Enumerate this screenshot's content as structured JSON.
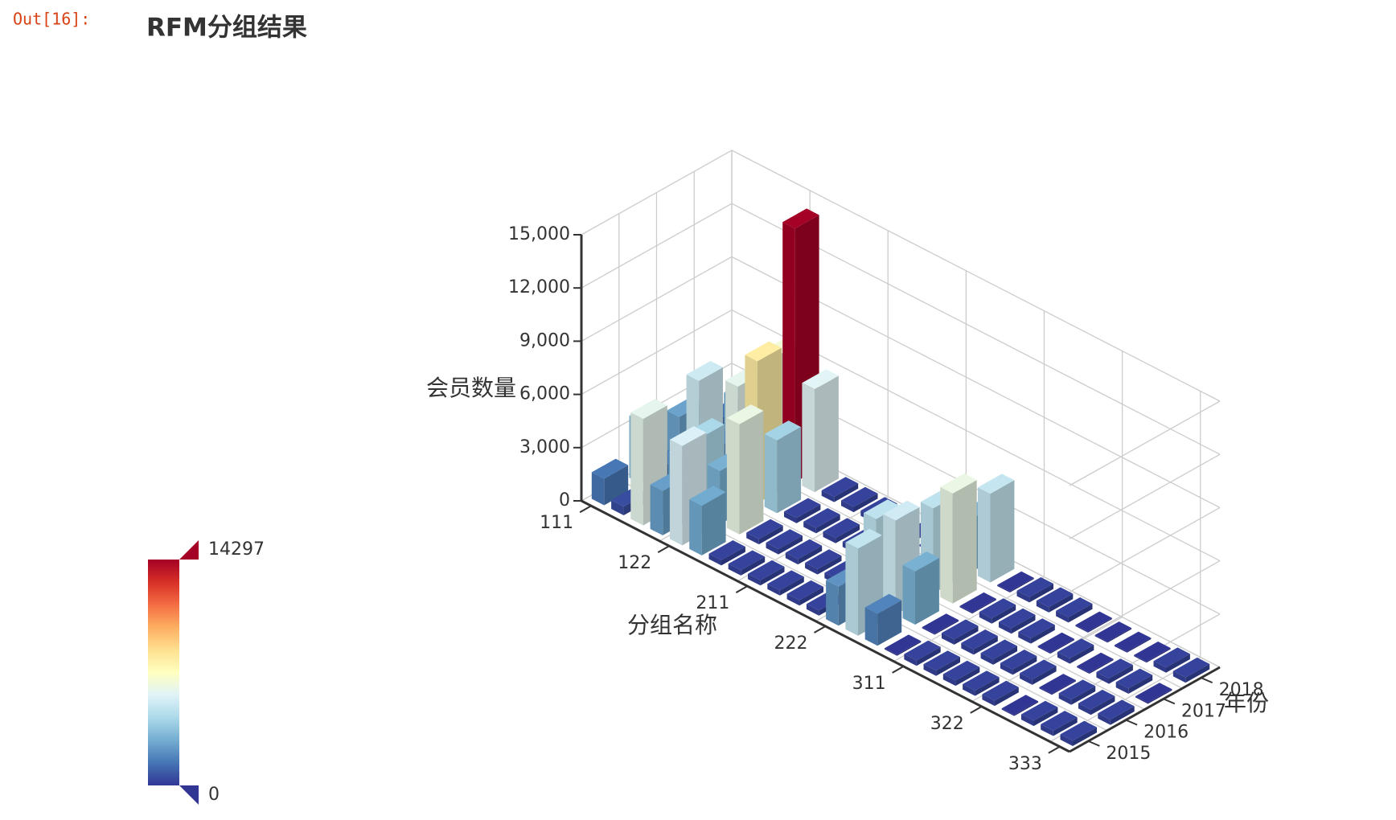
{
  "prompt": "Out[16]:",
  "chart_data": {
    "type": "bar3d",
    "title": "RFM分组结果",
    "x_label": "分组名称",
    "y_label": "年份",
    "z_label": "会员数量",
    "categories": [
      "111",
      null,
      null,
      null,
      "122",
      null,
      null,
      null,
      "211",
      null,
      null,
      null,
      "222",
      null,
      null,
      null,
      "311",
      null,
      null,
      null,
      "322",
      null,
      null,
      null,
      "333"
    ],
    "y_categories": [
      "2015",
      "2016",
      "2017",
      "2018"
    ],
    "values": [
      [
        1500,
        500,
        6000,
        2500,
        5600,
        2800,
        300,
        300,
        300,
        300,
        300,
        300,
        2200,
        4900,
        1800,
        0,
        300,
        300,
        300,
        300,
        300,
        0,
        300,
        300,
        300
      ],
      [
        3500,
        1500,
        2600,
        4300,
        3000,
        6200,
        300,
        300,
        300,
        300,
        300,
        300,
        4800,
        5300,
        3000,
        0,
        300,
        300,
        300,
        300,
        300,
        0,
        300,
        300,
        300
      ],
      [
        2600,
        5200,
        2000,
        6000,
        8000,
        4100,
        300,
        300,
        300,
        300,
        300,
        0,
        300,
        4800,
        6200,
        0,
        300,
        300,
        300,
        0,
        300,
        0,
        300,
        300,
        0
      ],
      [
        1200,
        3000,
        3300,
        6500,
        14297,
        5800,
        300,
        300,
        300,
        300,
        0,
        0,
        300,
        3000,
        5000,
        0,
        300,
        300,
        300,
        0,
        0,
        0,
        0,
        300,
        300
      ]
    ],
    "zlim": [
      0,
      15000
    ],
    "zticks": [
      0,
      {
        "value": 3000,
        "label": "3,000"
      },
      {
        "value": 6000,
        "label": "6,000"
      },
      {
        "value": 9000,
        "label": "9,000"
      },
      {
        "value": 12000,
        "label": "12,000"
      },
      {
        "value": 15000,
        "label": "15,000"
      }
    ],
    "grid": true,
    "visual_map": {
      "min": 0,
      "max": 14297,
      "colors": [
        "#313695",
        "#4575b4",
        "#74add1",
        "#abd9e9",
        "#e0f3f8",
        "#ffffbf",
        "#fee090",
        "#fdae61",
        "#f46d43",
        "#d73027",
        "#a50026"
      ]
    }
  }
}
